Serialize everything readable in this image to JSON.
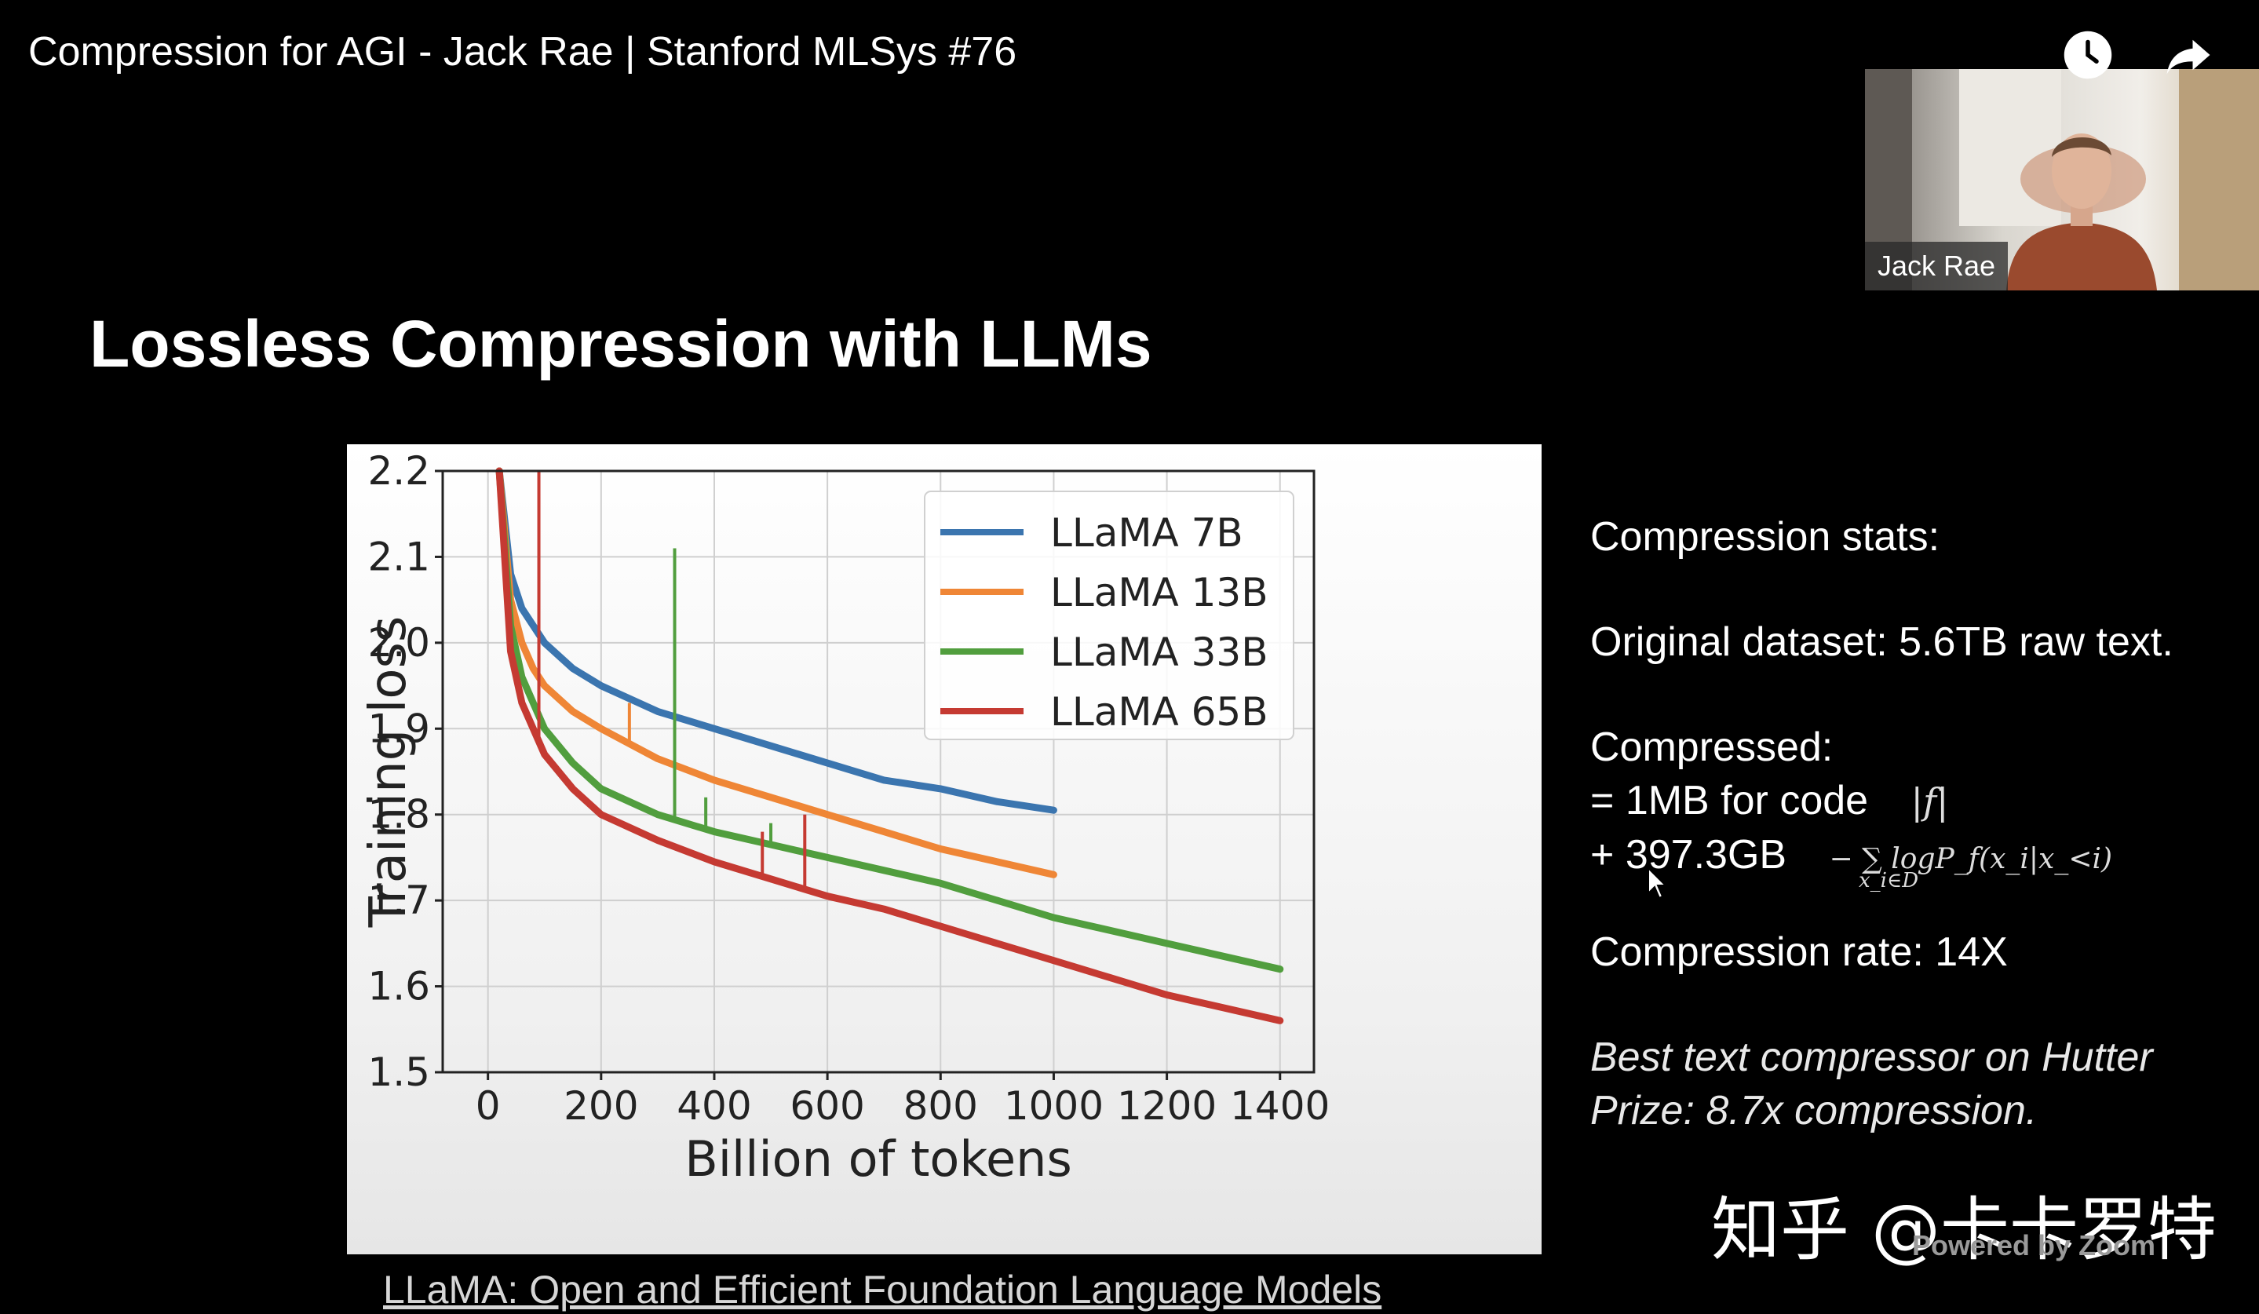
{
  "video": {
    "title": "Compression for AGI - Jack Rae | Stanford MLSys #76",
    "watch_later_icon": "clock-icon",
    "share_icon": "share-arrow-icon"
  },
  "presenter": {
    "name": "Jack Rae"
  },
  "slide": {
    "title": "Lossless Compression with LLMs",
    "stats": {
      "heading": "Compression stats:",
      "original": "Original dataset: 5.6TB raw text.",
      "compressed_label": "Compressed:",
      "code_line": "= 1MB for code",
      "code_formula": "|f|",
      "data_line": "+ 397.3GB",
      "data_formula": "− ∑ logP_f(x_i|x_<i)",
      "data_formula_sub": "x_i∈D",
      "rate": "Compression rate: 14X",
      "hutter_line1": "Best text compressor on Hutter",
      "hutter_line2": "Prize: 8.7x compression."
    },
    "paper_link": "LLaMA: Open and Efficient Foundation Language Models"
  },
  "watermark": {
    "text": "知乎 @卡卡罗特",
    "powered": "Powered by Zoom"
  },
  "chart_data": {
    "type": "line",
    "title": "",
    "xlabel": "Billion of tokens",
    "ylabel": "Training loss",
    "xlim": [
      -80,
      1460
    ],
    "ylim": [
      1.5,
      2.2
    ],
    "xticks": [
      0,
      200,
      400,
      600,
      800,
      1000,
      1200,
      1400
    ],
    "yticks": [
      1.5,
      1.6,
      1.7,
      1.8,
      1.9,
      2.0,
      2.1,
      2.2
    ],
    "grid": true,
    "legend_position": "top-right",
    "series": [
      {
        "name": "LLaMA 7B",
        "color": "#3b75af",
        "x": [
          20,
          40,
          60,
          80,
          100,
          150,
          200,
          300,
          400,
          500,
          600,
          700,
          800,
          900,
          1000
        ],
        "y": [
          2.2,
          2.08,
          2.04,
          2.02,
          2.0,
          1.97,
          1.95,
          1.92,
          1.9,
          1.88,
          1.86,
          1.84,
          1.83,
          1.815,
          1.805
        ]
      },
      {
        "name": "LLaMA 13B",
        "color": "#ef8636",
        "x": [
          20,
          40,
          60,
          80,
          100,
          150,
          200,
          300,
          400,
          500,
          600,
          700,
          800,
          900,
          1000
        ],
        "y": [
          2.2,
          2.05,
          2.0,
          1.97,
          1.95,
          1.92,
          1.9,
          1.865,
          1.84,
          1.82,
          1.8,
          1.78,
          1.76,
          1.745,
          1.73
        ]
      },
      {
        "name": "LLaMA 33B",
        "color": "#519e3e",
        "x": [
          20,
          40,
          60,
          80,
          100,
          150,
          200,
          300,
          400,
          500,
          600,
          700,
          800,
          900,
          1000,
          1100,
          1200,
          1300,
          1400
        ],
        "y": [
          2.2,
          2.02,
          1.96,
          1.93,
          1.9,
          1.86,
          1.83,
          1.8,
          1.78,
          1.765,
          1.75,
          1.735,
          1.72,
          1.7,
          1.68,
          1.665,
          1.65,
          1.635,
          1.62
        ]
      },
      {
        "name": "LLaMA 65B",
        "color": "#c53a32",
        "x": [
          20,
          40,
          60,
          80,
          100,
          150,
          200,
          300,
          400,
          500,
          600,
          700,
          800,
          900,
          1000,
          1100,
          1200,
          1300,
          1400
        ],
        "y": [
          2.2,
          1.99,
          1.93,
          1.9,
          1.87,
          1.83,
          1.8,
          1.77,
          1.745,
          1.725,
          1.705,
          1.69,
          1.67,
          1.65,
          1.63,
          1.61,
          1.59,
          1.575,
          1.56
        ]
      }
    ],
    "spikes": [
      {
        "series": 3,
        "x": 90,
        "top": 2.2
      },
      {
        "series": 2,
        "x": 330,
        "top": 2.11
      },
      {
        "series": 1,
        "x": 250,
        "top": 1.93
      },
      {
        "series": 2,
        "x": 385,
        "top": 1.82
      },
      {
        "series": 3,
        "x": 485,
        "top": 1.78
      },
      {
        "series": 2,
        "x": 500,
        "top": 1.79
      },
      {
        "series": 3,
        "x": 560,
        "top": 1.8
      }
    ]
  }
}
